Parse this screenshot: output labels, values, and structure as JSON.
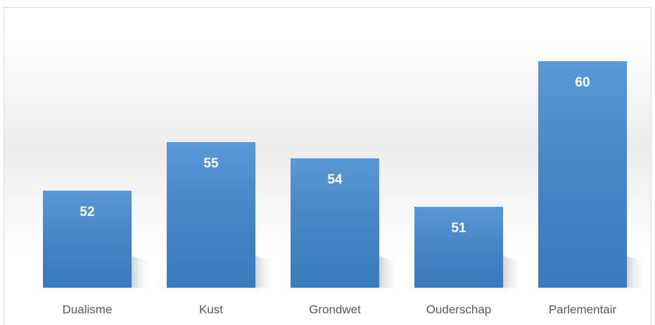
{
  "chart_data": {
    "type": "bar",
    "categories": [
      "Dualisme",
      "Kust",
      "Grondwet",
      "Ouderschap",
      "Parlementair"
    ],
    "values": [
      52,
      55,
      54,
      51,
      60
    ],
    "color": "#3f86d0",
    "ylim": [
      46,
      62
    ]
  }
}
